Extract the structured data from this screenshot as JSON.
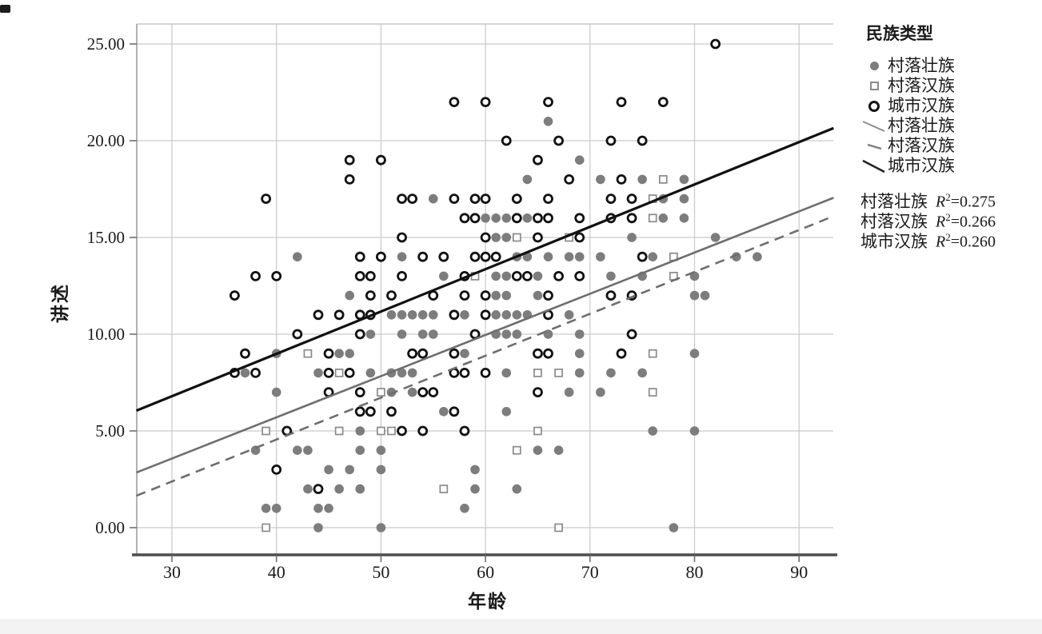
{
  "figure": {
    "background": "#ffffff"
  },
  "axes": {
    "x_title": "年龄",
    "y_title": "讲述",
    "x_ticks": [
      {
        "v": 30,
        "label": "30"
      },
      {
        "v": 40,
        "label": "40"
      },
      {
        "v": 50,
        "label": "50"
      },
      {
        "v": 60,
        "label": "60"
      },
      {
        "v": 70,
        "label": "70"
      },
      {
        "v": 80,
        "label": "80"
      },
      {
        "v": 90,
        "label": "90"
      }
    ],
    "y_ticks": [
      {
        "v": 0,
        "label": "0.00"
      },
      {
        "v": 5,
        "label": "5.00"
      },
      {
        "v": 10,
        "label": "10.00"
      },
      {
        "v": 15,
        "label": "15.00"
      },
      {
        "v": 20,
        "label": "20.00"
      },
      {
        "v": 25,
        "label": "25.00"
      }
    ]
  },
  "legend": {
    "title": "民族类型",
    "marker_items": [
      {
        "label": "村落壮族",
        "marker": "filled-circle"
      },
      {
        "label": "村落汉族",
        "marker": "open-square"
      },
      {
        "label": "城市汉族",
        "marker": "open-circle"
      }
    ],
    "line_items": [
      {
        "label": "村落壮族",
        "style": "solid-gray"
      },
      {
        "label": "村落汉族",
        "style": "dashed-gray"
      },
      {
        "label": "城市汉族",
        "style": "solid-black"
      }
    ],
    "r2_items": [
      {
        "label": "村落壮族",
        "r": "R",
        "sup": "2",
        "value": "=0.275"
      },
      {
        "label": "村落汉族",
        "r": "R",
        "sup": "2",
        "value": "=0.266"
      },
      {
        "label": "城市汉族",
        "r": "R",
        "sup": "2",
        "value": "=0.260"
      }
    ]
  },
  "chart_data": {
    "type": "scatter",
    "xlabel": "年龄",
    "ylabel": "讲述",
    "xlim": [
      26.6,
      93.3
    ],
    "ylim": [
      -1.4,
      26.2
    ],
    "grid": true,
    "legend_position": "right",
    "colors": {
      "filled": "#7d7d7d",
      "square_stroke": "#8a8a8a",
      "circle_stroke": "#111111",
      "grid": "#c9c9c9",
      "axis": "#4d4d4d",
      "border": "#9a9a9a",
      "line_black": "#111111",
      "line_gray": "#6e6e6e"
    },
    "series": [
      {
        "name": "村落壮族",
        "marker": "filled-circle",
        "color": "#7d7d7d",
        "points": [
          [
            66,
            21
          ],
          [
            69,
            19
          ],
          [
            64,
            18
          ],
          [
            71,
            18
          ],
          [
            75,
            18
          ],
          [
            79,
            18
          ],
          [
            55,
            17
          ],
          [
            77,
            17
          ],
          [
            79,
            17
          ],
          [
            60,
            16
          ],
          [
            61,
            16
          ],
          [
            62,
            16
          ],
          [
            64,
            16
          ],
          [
            74,
            16
          ],
          [
            77,
            16
          ],
          [
            79,
            16
          ],
          [
            60,
            15
          ],
          [
            61,
            15
          ],
          [
            62,
            15
          ],
          [
            69,
            15
          ],
          [
            74,
            15
          ],
          [
            82,
            15
          ],
          [
            42,
            14
          ],
          [
            52,
            14
          ],
          [
            63,
            14
          ],
          [
            64,
            14
          ],
          [
            66,
            14
          ],
          [
            68,
            14
          ],
          [
            69,
            14
          ],
          [
            71,
            14
          ],
          [
            75,
            14
          ],
          [
            76,
            14
          ],
          [
            84,
            14
          ],
          [
            86,
            14
          ],
          [
            56,
            13
          ],
          [
            61,
            13
          ],
          [
            62,
            13
          ],
          [
            65,
            13
          ],
          [
            67,
            13
          ],
          [
            72,
            13
          ],
          [
            75,
            13
          ],
          [
            80,
            13
          ],
          [
            47,
            12
          ],
          [
            61,
            12
          ],
          [
            62,
            12
          ],
          [
            65,
            12
          ],
          [
            66,
            12
          ],
          [
            80,
            12
          ],
          [
            81,
            12
          ],
          [
            51,
            11
          ],
          [
            52,
            11
          ],
          [
            53,
            11
          ],
          [
            54,
            11
          ],
          [
            55,
            11
          ],
          [
            58,
            11
          ],
          [
            61,
            11
          ],
          [
            62,
            11
          ],
          [
            63,
            11
          ],
          [
            64,
            11
          ],
          [
            68,
            11
          ],
          [
            49,
            10
          ],
          [
            52,
            10
          ],
          [
            54,
            10
          ],
          [
            55,
            10
          ],
          [
            61,
            10
          ],
          [
            62,
            10
          ],
          [
            63,
            10
          ],
          [
            66,
            10
          ],
          [
            69,
            10
          ],
          [
            40,
            9
          ],
          [
            46,
            9
          ],
          [
            47,
            9
          ],
          [
            58,
            9
          ],
          [
            69,
            9
          ],
          [
            80,
            9
          ],
          [
            37,
            8
          ],
          [
            44,
            8
          ],
          [
            49,
            8
          ],
          [
            51,
            8
          ],
          [
            52,
            8
          ],
          [
            53,
            8
          ],
          [
            58,
            8
          ],
          [
            62,
            8
          ],
          [
            69,
            8
          ],
          [
            72,
            8
          ],
          [
            75,
            8
          ],
          [
            40,
            7
          ],
          [
            51,
            7
          ],
          [
            53,
            7
          ],
          [
            68,
            7
          ],
          [
            71,
            7
          ],
          [
            56,
            6
          ],
          [
            62,
            6
          ],
          [
            48,
            5
          ],
          [
            76,
            5
          ],
          [
            80,
            5
          ],
          [
            38,
            4
          ],
          [
            42,
            4
          ],
          [
            43,
            4
          ],
          [
            48,
            4
          ],
          [
            50,
            4
          ],
          [
            65,
            4
          ],
          [
            67,
            4
          ],
          [
            45,
            3
          ],
          [
            47,
            3
          ],
          [
            50,
            3
          ],
          [
            59,
            3
          ],
          [
            43,
            2
          ],
          [
            46,
            2
          ],
          [
            48,
            2
          ],
          [
            59,
            2
          ],
          [
            63,
            2
          ],
          [
            39,
            1
          ],
          [
            40,
            1
          ],
          [
            44,
            1
          ],
          [
            45,
            1
          ],
          [
            58,
            1
          ],
          [
            44,
            0
          ],
          [
            50,
            0
          ],
          [
            78,
            0
          ]
        ]
      },
      {
        "name": "村落汉族",
        "marker": "open-square",
        "color": "#8a8a8a",
        "points": [
          [
            77,
            18
          ],
          [
            76,
            17
          ],
          [
            76,
            16
          ],
          [
            63,
            15
          ],
          [
            68,
            15
          ],
          [
            78,
            14
          ],
          [
            59,
            13
          ],
          [
            78,
            13
          ],
          [
            43,
            9
          ],
          [
            76,
            9
          ],
          [
            46,
            8
          ],
          [
            65,
            8
          ],
          [
            67,
            8
          ],
          [
            50,
            7
          ],
          [
            76,
            7
          ],
          [
            39,
            5
          ],
          [
            46,
            5
          ],
          [
            50,
            5
          ],
          [
            51,
            5
          ],
          [
            65,
            5
          ],
          [
            63,
            4
          ],
          [
            56,
            2
          ],
          [
            39,
            0
          ],
          [
            67,
            0
          ]
        ]
      },
      {
        "name": "城市汉族",
        "marker": "open-circle",
        "color": "#111111",
        "points": [
          [
            82,
            25
          ],
          [
            57,
            22
          ],
          [
            60,
            22
          ],
          [
            66,
            22
          ],
          [
            73,
            22
          ],
          [
            77,
            22
          ],
          [
            62,
            20
          ],
          [
            67,
            20
          ],
          [
            72,
            20
          ],
          [
            75,
            20
          ],
          [
            47,
            19
          ],
          [
            50,
            19
          ],
          [
            65,
            19
          ],
          [
            47,
            18
          ],
          [
            68,
            18
          ],
          [
            73,
            18
          ],
          [
            39,
            17
          ],
          [
            52,
            17
          ],
          [
            53,
            17
          ],
          [
            57,
            17
          ],
          [
            59,
            17
          ],
          [
            60,
            17
          ],
          [
            63,
            17
          ],
          [
            66,
            17
          ],
          [
            72,
            17
          ],
          [
            74,
            17
          ],
          [
            58,
            16
          ],
          [
            59,
            16
          ],
          [
            63,
            16
          ],
          [
            65,
            16
          ],
          [
            66,
            16
          ],
          [
            69,
            16
          ],
          [
            72,
            16
          ],
          [
            74,
            16
          ],
          [
            52,
            15
          ],
          [
            60,
            15
          ],
          [
            65,
            15
          ],
          [
            69,
            15
          ],
          [
            48,
            14
          ],
          [
            50,
            14
          ],
          [
            54,
            14
          ],
          [
            56,
            14
          ],
          [
            59,
            14
          ],
          [
            60,
            14
          ],
          [
            61,
            14
          ],
          [
            75,
            14
          ],
          [
            38,
            13
          ],
          [
            40,
            13
          ],
          [
            48,
            13
          ],
          [
            49,
            13
          ],
          [
            52,
            13
          ],
          [
            58,
            13
          ],
          [
            63,
            13
          ],
          [
            64,
            13
          ],
          [
            67,
            13
          ],
          [
            69,
            13
          ],
          [
            36,
            12
          ],
          [
            49,
            12
          ],
          [
            51,
            12
          ],
          [
            55,
            12
          ],
          [
            58,
            12
          ],
          [
            60,
            12
          ],
          [
            66,
            12
          ],
          [
            72,
            12
          ],
          [
            74,
            12
          ],
          [
            44,
            11
          ],
          [
            46,
            11
          ],
          [
            48,
            11
          ],
          [
            49,
            11
          ],
          [
            57,
            11
          ],
          [
            60,
            11
          ],
          [
            66,
            11
          ],
          [
            42,
            10
          ],
          [
            48,
            10
          ],
          [
            59,
            10
          ],
          [
            74,
            10
          ],
          [
            37,
            9
          ],
          [
            45,
            9
          ],
          [
            53,
            9
          ],
          [
            54,
            9
          ],
          [
            57,
            9
          ],
          [
            65,
            9
          ],
          [
            66,
            9
          ],
          [
            73,
            9
          ],
          [
            36,
            8
          ],
          [
            38,
            8
          ],
          [
            45,
            8
          ],
          [
            47,
            8
          ],
          [
            57,
            8
          ],
          [
            58,
            8
          ],
          [
            60,
            8
          ],
          [
            45,
            7
          ],
          [
            48,
            7
          ],
          [
            54,
            7
          ],
          [
            55,
            7
          ],
          [
            65,
            7
          ],
          [
            48,
            6
          ],
          [
            49,
            6
          ],
          [
            51,
            6
          ],
          [
            57,
            6
          ],
          [
            41,
            5
          ],
          [
            52,
            5
          ],
          [
            54,
            5
          ],
          [
            58,
            5
          ],
          [
            40,
            3
          ],
          [
            44,
            2
          ]
        ]
      }
    ],
    "fit_lines": [
      {
        "name": "村落壮族",
        "style": "solid",
        "color": "#6e6e6e",
        "width": 2.6,
        "x1": 26.6,
        "y1": 2.85,
        "x2": 93.3,
        "y2": 17.05,
        "r2": 0.275
      },
      {
        "name": "村落汉族",
        "style": "dashed",
        "color": "#6e6e6e",
        "width": 2.6,
        "x1": 26.6,
        "y1": 1.65,
        "x2": 93.3,
        "y2": 16.1,
        "r2": 0.266
      },
      {
        "name": "城市汉族",
        "style": "solid",
        "color": "#111111",
        "width": 3.2,
        "x1": 26.6,
        "y1": 6.05,
        "x2": 93.3,
        "y2": 20.65,
        "r2": 0.26
      }
    ]
  }
}
